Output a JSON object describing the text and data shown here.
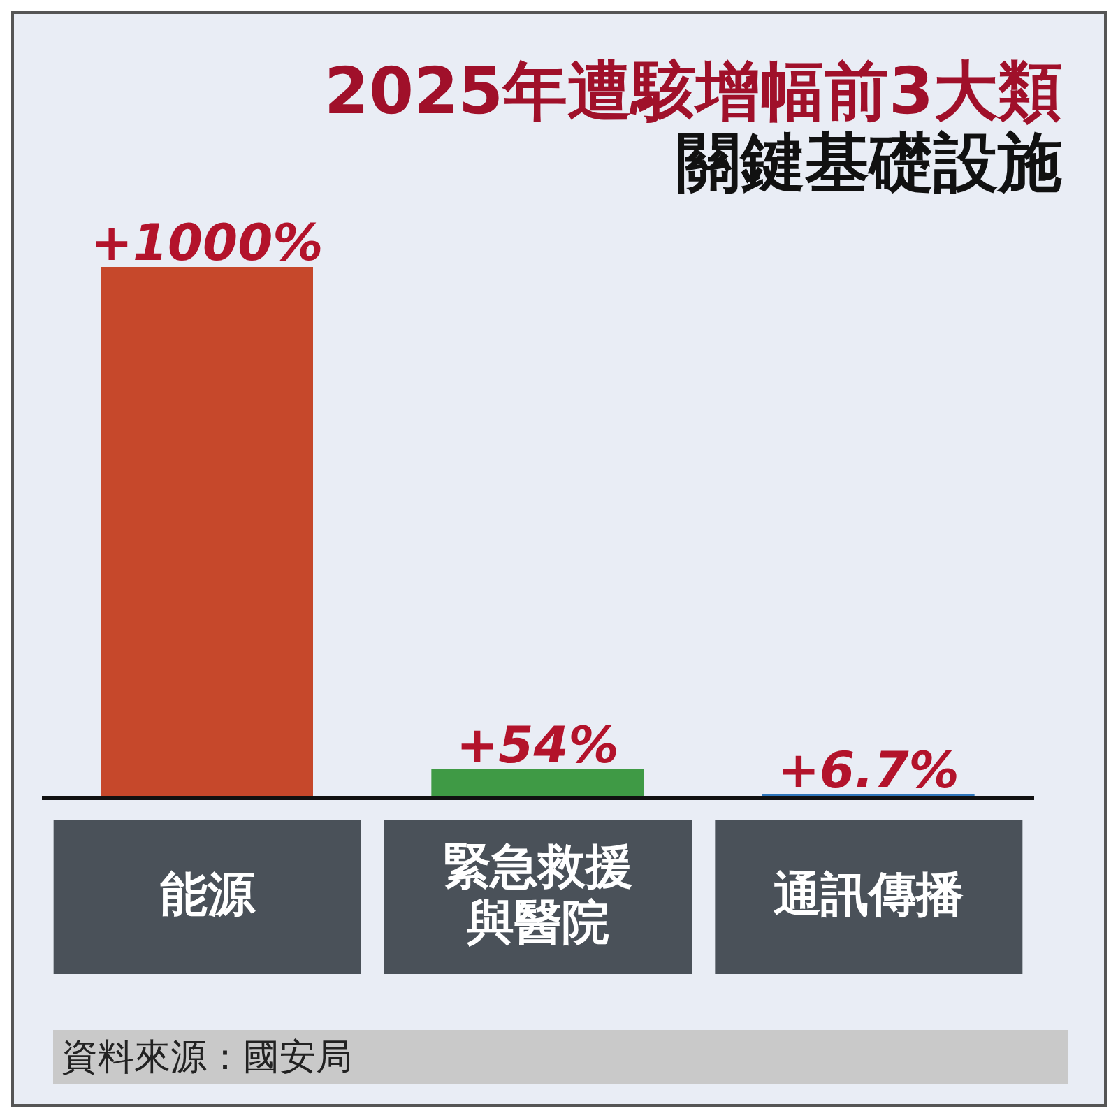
{
  "chart_data": {
    "type": "bar",
    "title": "2025年遭駭增幅前3大類",
    "subtitle": "關鍵基礎設施",
    "categories": [
      "能源",
      "緊急救援與醫院",
      "通訊傳播"
    ],
    "values": [
      1000,
      54,
      6.7
    ],
    "colors": [
      "#c6482b",
      "#3f9a45",
      "#2f76bb"
    ],
    "value_labels": [
      "+1000%",
      "+54%",
      "+6.7%"
    ],
    "annotations": [
      "資料來源：國安局"
    ]
  }
}
